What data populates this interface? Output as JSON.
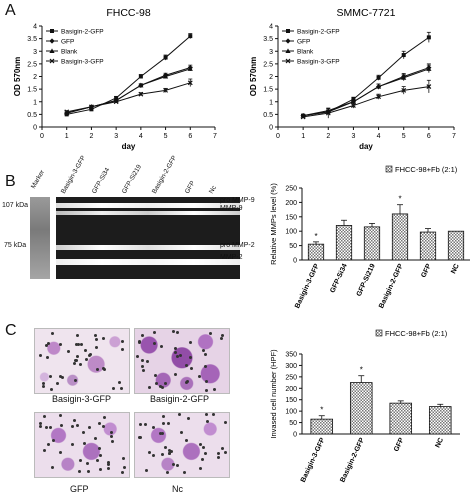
{
  "panels": {
    "a_letter": "A",
    "b_letter": "B",
    "c_letter": "C"
  },
  "colors": {
    "bar_fill_pattern": "#777777",
    "gel_background": "#1a1a1a",
    "gel_band": "#f0f0f0",
    "marker_lane": "#8a8a8a",
    "stain": "#8c3aa6"
  },
  "gel": {
    "lanes": [
      "Marker",
      "Basigin-3-GFP",
      "GFP-Si34",
      "GFP-Si219",
      "Basigin-2-GFP",
      "GFP",
      "Nc"
    ],
    "size_labels": [
      "107 kDa",
      "75 kDa"
    ],
    "band_labels": [
      "pro MMP-9",
      "MMP-9",
      "pro MMP-2",
      "MMP-2"
    ]
  },
  "photos": {
    "labels": [
      "Basigin-3-GFP",
      "Basigin-2-GFP",
      "GFP",
      "Nc"
    ]
  },
  "chart_data": [
    {
      "type": "line",
      "title": "FHCC-98",
      "xlabel": "day",
      "ylabel": "OD 570nm",
      "xlim": [
        0,
        7
      ],
      "ylim": [
        0,
        4
      ],
      "xticks": [
        0,
        1,
        2,
        3,
        4,
        5,
        6,
        7
      ],
      "yticks": [
        0,
        0.5,
        1,
        1.5,
        2,
        2.5,
        3,
        3.5,
        4
      ],
      "legend_position": "top-left",
      "x": [
        1,
        2,
        3,
        4,
        5,
        6
      ],
      "series": [
        {
          "name": "Basigin-2-GFP",
          "marker": "square",
          "values": [
            0.5,
            0.7,
            1.15,
            2.0,
            2.75,
            3.6
          ],
          "errors": [
            0.05,
            0.05,
            0.06,
            0.08,
            0.1,
            0.1
          ]
        },
        {
          "name": "GFP",
          "marker": "diamond",
          "values": [
            0.55,
            0.8,
            1.05,
            1.65,
            2.05,
            2.35
          ],
          "errors": [
            0.05,
            0.05,
            0.06,
            0.06,
            0.08,
            0.1
          ]
        },
        {
          "name": "Blank",
          "marker": "triangle",
          "values": [
            0.55,
            0.8,
            1.05,
            1.65,
            2.0,
            2.3
          ],
          "errors": [
            0.05,
            0.05,
            0.06,
            0.06,
            0.08,
            0.08
          ]
        },
        {
          "name": "Basigin-3-GFP",
          "marker": "x",
          "values": [
            0.6,
            0.8,
            1.0,
            1.3,
            1.45,
            1.75
          ],
          "errors": [
            0.05,
            0.05,
            0.05,
            0.06,
            0.08,
            0.15
          ]
        }
      ]
    },
    {
      "type": "line",
      "title": "SMMC-7721",
      "xlabel": "day",
      "ylabel": "OD 570nm",
      "xlim": [
        0,
        7
      ],
      "ylim": [
        0,
        4
      ],
      "xticks": [
        0,
        1,
        2,
        3,
        4,
        5,
        6,
        7
      ],
      "yticks": [
        0,
        0.5,
        1,
        1.5,
        2,
        2.5,
        3,
        3.5,
        4
      ],
      "legend_position": "top-left",
      "x": [
        1,
        2,
        3,
        4,
        5,
        6
      ],
      "series": [
        {
          "name": "Basigin-2-GFP",
          "marker": "square",
          "values": [
            0.45,
            0.6,
            1.1,
            1.95,
            2.85,
            3.55
          ],
          "errors": [
            0.05,
            0.08,
            0.08,
            0.1,
            0.15,
            0.2
          ]
        },
        {
          "name": "GFP",
          "marker": "diamond",
          "values": [
            0.45,
            0.6,
            1.0,
            1.6,
            2.0,
            2.35
          ],
          "errors": [
            0.05,
            0.08,
            0.08,
            0.1,
            0.12,
            0.15
          ]
        },
        {
          "name": "Blank",
          "marker": "triangle",
          "values": [
            0.45,
            0.65,
            1.0,
            1.6,
            1.95,
            2.3
          ],
          "errors": [
            0.05,
            0.08,
            0.08,
            0.1,
            0.12,
            0.15
          ]
        },
        {
          "name": "Basigin-3-GFP",
          "marker": "x",
          "values": [
            0.4,
            0.55,
            0.85,
            1.2,
            1.45,
            1.6
          ],
          "errors": [
            0.05,
            0.2,
            0.1,
            0.1,
            0.15,
            0.25
          ]
        }
      ]
    },
    {
      "type": "bar",
      "ylabel": "Relative MMPs level (%)",
      "ylim": [
        0,
        250
      ],
      "yticks": [
        0,
        50,
        100,
        150,
        200,
        250
      ],
      "legend": "FHCC-98+Fb (2:1)",
      "legend_position": "top-right",
      "categories": [
        "Basigin-3-GFP",
        "GFP-Si34",
        "GFP-Si219",
        "Basigin-2-GFP",
        "GFP",
        "NC"
      ],
      "values": [
        55,
        120,
        115,
        160,
        97,
        100
      ],
      "errors": [
        8,
        18,
        12,
        32,
        12,
        0
      ],
      "significance": [
        "*",
        "",
        "",
        "*",
        "",
        ""
      ]
    },
    {
      "type": "bar",
      "ylabel": "Invased cell number (HPF)",
      "ylim": [
        0,
        350
      ],
      "yticks": [
        0,
        50,
        100,
        150,
        200,
        250,
        300,
        350
      ],
      "legend": "FHCC-98+Fb (2:1)",
      "legend_position": "top-right",
      "categories": [
        "Basigin-3-GFP",
        "Basigin-2-GFP",
        "GFP",
        "NC"
      ],
      "values": [
        65,
        225,
        135,
        120
      ],
      "errors": [
        15,
        30,
        10,
        10
      ],
      "significance": [
        "*",
        "*",
        "",
        ""
      ]
    }
  ]
}
